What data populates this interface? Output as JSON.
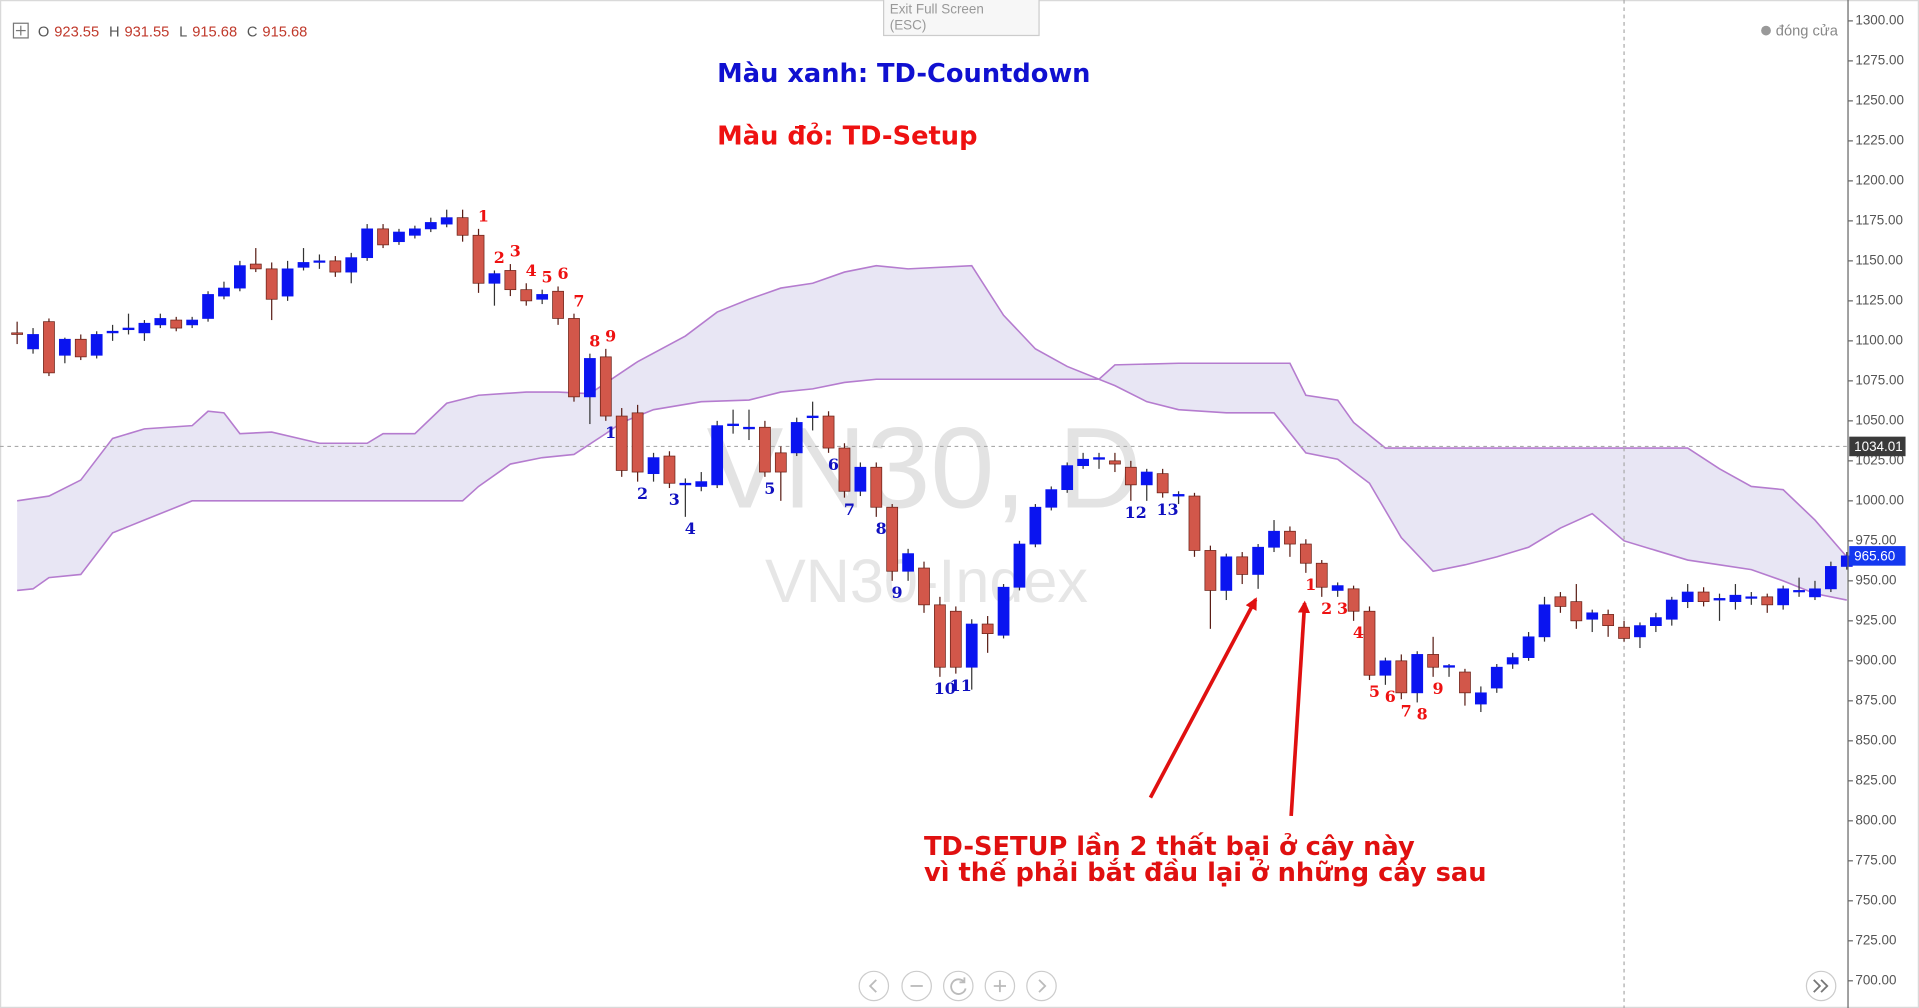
{
  "chart_data": {
    "type": "candlestick",
    "ohlc_legend": [
      {
        "label": "O",
        "value": 923.55
      },
      {
        "label": "H",
        "value": 931.55
      },
      {
        "label": "L",
        "value": 915.68
      },
      {
        "label": "C",
        "value": 915.68
      }
    ],
    "notes": [
      {
        "text": "Màu xanh: TD-Countdown",
        "color": "#1010d0"
      },
      {
        "text": "Màu đỏ: TD-Setup",
        "color": "#ee1111"
      }
    ],
    "watermark": [
      "VN30, D",
      "VN30-Index"
    ],
    "annotation": [
      "TD-SETUP lần 2 thất bại ở cây này",
      "vì thế phải bắt đầu lại ở những cây sau"
    ],
    "exit_fullscreen": [
      "Exit Full Screen",
      "(ESC)"
    ],
    "close_label": "đóng cửa",
    "up_color": "#0a14f0",
    "down_color": "#d2574a",
    "ylim": [
      683,
      1310
    ],
    "yticks": [
      {
        "value": 700,
        "label": "700.00"
      },
      {
        "value": 725,
        "label": "725.00"
      },
      {
        "value": 750,
        "label": "750.00"
      },
      {
        "value": 775,
        "label": "775.00"
      },
      {
        "value": 800,
        "label": "800.00"
      },
      {
        "value": 825,
        "label": "825.00"
      },
      {
        "value": 850,
        "label": "850.00"
      },
      {
        "value": 875,
        "label": "875.00"
      },
      {
        "value": 900,
        "label": "900.00"
      },
      {
        "value": 925,
        "label": "925.00"
      },
      {
        "value": 950,
        "label": "950.00"
      },
      {
        "value": 975,
        "label": "975.00"
      },
      {
        "value": 1000,
        "label": "1000.00"
      },
      {
        "value": 1025,
        "label": "1025.00"
      },
      {
        "value": 1050,
        "label": "1050.00"
      },
      {
        "value": 1075,
        "label": "1075.00"
      },
      {
        "value": 1100,
        "label": "1100.00"
      },
      {
        "value": 1125,
        "label": "1125.00"
      },
      {
        "value": 1150,
        "label": "1150.00"
      },
      {
        "value": 1175,
        "label": "1175.00"
      },
      {
        "value": 1200,
        "label": "1200.00"
      },
      {
        "value": 1225,
        "label": "1225.00"
      },
      {
        "value": 1250,
        "label": "1250.00"
      },
      {
        "value": 1275,
        "label": "1275.00"
      },
      {
        "value": 1300,
        "label": "1300.00"
      }
    ],
    "crosshair": {
      "price": 1034.01,
      "index": 101
    },
    "last_price": {
      "value": 965.6,
      "label": "965.60"
    },
    "ohlc": [
      [
        1105,
        1112,
        1098,
        1104
      ],
      [
        1095,
        1108,
        1092,
        1104
      ],
      [
        1112,
        1114,
        1078,
        1080
      ],
      [
        1091,
        1102,
        1086,
        1101
      ],
      [
        1101,
        1104,
        1088,
        1090
      ],
      [
        1091,
        1106,
        1089,
        1104
      ],
      [
        1105,
        1110,
        1100,
        1106
      ],
      [
        1107,
        1117,
        1104,
        1108
      ],
      [
        1105,
        1113,
        1100,
        1111
      ],
      [
        1110,
        1117,
        1108,
        1114
      ],
      [
        1113,
        1115,
        1106,
        1108
      ],
      [
        1110,
        1115,
        1108,
        1113
      ],
      [
        1114,
        1131,
        1112,
        1129
      ],
      [
        1128,
        1137,
        1126,
        1133
      ],
      [
        1133,
        1150,
        1131,
        1147
      ],
      [
        1148,
        1158,
        1143,
        1145
      ],
      [
        1145,
        1149,
        1113,
        1126
      ],
      [
        1128,
        1150,
        1125,
        1145
      ],
      [
        1146,
        1158,
        1144,
        1149
      ],
      [
        1150,
        1154,
        1145,
        1150
      ],
      [
        1150,
        1153,
        1140,
        1143
      ],
      [
        1143,
        1155,
        1136,
        1152
      ],
      [
        1152,
        1173,
        1150,
        1170
      ],
      [
        1170,
        1173,
        1158,
        1160
      ],
      [
        1162,
        1170,
        1160,
        1168
      ],
      [
        1166,
        1172,
        1164,
        1170
      ],
      [
        1170,
        1177,
        1168,
        1174
      ],
      [
        1173,
        1182,
        1171,
        1177
      ],
      [
        1177,
        1182,
        1162,
        1166
      ],
      [
        1166,
        1170,
        1130,
        1136
      ],
      [
        1136,
        1144,
        1122,
        1142
      ],
      [
        1144,
        1148,
        1128,
        1132
      ],
      [
        1132,
        1136,
        1122,
        1125
      ],
      [
        1126,
        1132,
        1123,
        1129
      ],
      [
        1131,
        1134,
        1110,
        1114
      ],
      [
        1114,
        1117,
        1062,
        1065
      ],
      [
        1065,
        1092,
        1048,
        1089
      ],
      [
        1090,
        1095,
        1050,
        1053
      ],
      [
        1053,
        1058,
        1015,
        1019
      ],
      [
        1055,
        1060,
        1012,
        1018
      ],
      [
        1017,
        1030,
        1012,
        1027
      ],
      [
        1028,
        1031,
        1008,
        1011
      ],
      [
        1010,
        1014,
        990,
        1011
      ],
      [
        1009,
        1018,
        1006,
        1012
      ],
      [
        1010,
        1050,
        1008,
        1047
      ],
      [
        1047,
        1057,
        1042,
        1048
      ],
      [
        1045,
        1057,
        1038,
        1046
      ],
      [
        1046,
        1050,
        1015,
        1018
      ],
      [
        1030,
        1034,
        1000,
        1018
      ],
      [
        1030,
        1052,
        1028,
        1049
      ],
      [
        1052,
        1062,
        1044,
        1053
      ],
      [
        1053,
        1056,
        1030,
        1033
      ],
      [
        1033,
        1036,
        1002,
        1006
      ],
      [
        1006,
        1024,
        1003,
        1021
      ],
      [
        1021,
        1024,
        990,
        996
      ],
      [
        996,
        998,
        950,
        956
      ],
      [
        956,
        970,
        950,
        967
      ],
      [
        958,
        962,
        930,
        935
      ],
      [
        935,
        940,
        890,
        896
      ],
      [
        931,
        934,
        892,
        896
      ],
      [
        896,
        926,
        882,
        923
      ],
      [
        923,
        928,
        905,
        917
      ],
      [
        916,
        948,
        914,
        946
      ],
      [
        946,
        975,
        944,
        973
      ],
      [
        973,
        998,
        971,
        996
      ],
      [
        996,
        1009,
        994,
        1007
      ],
      [
        1007,
        1024,
        1005,
        1022
      ],
      [
        1022,
        1030,
        1020,
        1026
      ],
      [
        1026,
        1030,
        1020,
        1027
      ],
      [
        1025,
        1030,
        1018,
        1023
      ],
      [
        1021,
        1025,
        1000,
        1010
      ],
      [
        1010,
        1020,
        1000,
        1018
      ],
      [
        1017,
        1020,
        1002,
        1005
      ],
      [
        1003,
        1006,
        998,
        1004
      ],
      [
        1003,
        1005,
        965,
        969
      ],
      [
        969,
        972,
        920,
        944
      ],
      [
        944,
        967,
        938,
        965
      ],
      [
        965,
        968,
        948,
        954
      ],
      [
        954,
        973,
        945,
        971
      ],
      [
        971,
        988,
        968,
        981
      ],
      [
        981,
        984,
        965,
        973
      ],
      [
        973,
        976,
        955,
        961
      ],
      [
        961,
        963,
        940,
        946
      ],
      [
        944,
        949,
        940,
        947
      ],
      [
        945,
        947,
        925,
        931
      ],
      [
        931,
        934,
        888,
        891
      ],
      [
        891,
        902,
        885,
        900
      ],
      [
        900,
        904,
        876,
        880
      ],
      [
        880,
        906,
        874,
        904
      ],
      [
        904,
        915,
        890,
        896
      ],
      [
        896,
        898,
        890,
        897
      ],
      [
        893,
        895,
        872,
        880
      ],
      [
        873,
        884,
        868,
        880
      ],
      [
        883,
        898,
        880,
        896
      ],
      [
        898,
        905,
        895,
        902
      ],
      [
        902,
        918,
        900,
        915
      ],
      [
        915,
        940,
        912,
        935
      ],
      [
        940,
        943,
        930,
        934
      ],
      [
        937,
        948,
        920,
        925
      ],
      [
        926,
        932,
        918,
        930
      ],
      [
        929,
        932,
        915,
        922
      ],
      [
        921,
        925,
        912,
        914
      ],
      [
        915,
        924,
        908,
        922
      ],
      [
        922,
        930,
        918,
        927
      ],
      [
        926,
        940,
        922,
        938
      ],
      [
        937,
        948,
        933,
        943
      ],
      [
        943,
        946,
        934,
        937
      ],
      [
        938,
        942,
        925,
        939
      ],
      [
        937,
        948,
        932,
        941
      ],
      [
        940,
        943,
        935,
        940
      ],
      [
        940,
        942,
        930,
        935
      ],
      [
        935,
        947,
        932,
        945
      ],
      [
        944,
        952,
        940,
        944
      ],
      [
        940,
        950,
        938,
        945
      ],
      [
        945,
        962,
        943,
        959
      ],
      [
        959,
        968,
        957,
        965.6
      ]
    ],
    "cloud": {
      "fill": "#e4e2f2",
      "series": [
        {
          "color": "#b57ccf",
          "x": [
            0,
            2,
            4,
            6,
            8,
            11,
            12,
            13,
            14,
            16,
            19,
            22,
            23,
            25,
            27,
            29,
            32,
            34,
            36,
            39,
            42,
            44,
            46,
            48,
            50,
            52,
            54,
            56,
            60,
            62,
            64,
            66,
            68,
            69,
            73,
            80,
            81,
            83,
            84,
            86,
            105,
            107,
            109,
            111,
            113,
            115
          ],
          "values": [
            1000,
            1003,
            1013,
            1039,
            1045,
            1047,
            1056,
            1055,
            1042,
            1043,
            1036,
            1036,
            1042,
            1042,
            1061,
            1066,
            1068,
            1068,
            1067,
            1087,
            1103,
            1118,
            1126,
            1133,
            1136,
            1143,
            1147,
            1145,
            1147,
            1116,
            1095,
            1084,
            1076,
            1085,
            1086,
            1086,
            1066,
            1063,
            1049,
            1033,
            1033,
            1020,
            1009,
            1007,
            988,
            965
          ]
        },
        {
          "color": "#b57ccf",
          "x": [
            0,
            1,
            2,
            4,
            6,
            8,
            11,
            28,
            29,
            31,
            33,
            35,
            37,
            38,
            40,
            43,
            46,
            48,
            50,
            52,
            54,
            68,
            69,
            71,
            73,
            76,
            79,
            81,
            83,
            85,
            87,
            89,
            91,
            93,
            95,
            97,
            99,
            101,
            103,
            105,
            107,
            109,
            111,
            113,
            115
          ],
          "values": [
            944,
            945,
            952,
            954,
            980,
            988,
            1000,
            1000,
            1009,
            1023,
            1027,
            1029,
            1042,
            1049,
            1057,
            1062,
            1063,
            1068,
            1070,
            1074,
            1076,
            1076,
            1072,
            1062,
            1057,
            1055,
            1055,
            1030,
            1026,
            1011,
            977,
            956,
            960,
            965,
            971,
            983,
            992,
            975,
            969,
            963,
            960,
            957,
            950,
            942,
            938
          ]
        }
      ]
    },
    "td_labels": [
      {
        "color": "#ee1111",
        "side": "above",
        "indices": [
          29,
          30,
          31,
          32,
          33,
          34,
          35,
          36,
          37
        ],
        "counts": [
          1,
          2,
          3,
          4,
          5,
          6,
          7,
          8,
          9
        ]
      },
      {
        "color": "#1010c0",
        "side": "below",
        "indices": [
          37,
          39,
          41,
          42,
          47,
          51,
          52,
          54,
          55,
          58,
          59,
          70,
          72
        ],
        "counts": [
          1,
          2,
          3,
          4,
          5,
          6,
          7,
          8,
          9,
          10,
          11,
          12,
          13
        ]
      },
      {
        "color": "#ee1111",
        "side": "below",
        "indices": [
          81,
          82,
          83,
          84,
          85,
          86,
          87,
          88,
          89
        ],
        "counts": [
          1,
          2,
          3,
          4,
          5,
          6,
          7,
          8,
          9
        ]
      }
    ]
  }
}
